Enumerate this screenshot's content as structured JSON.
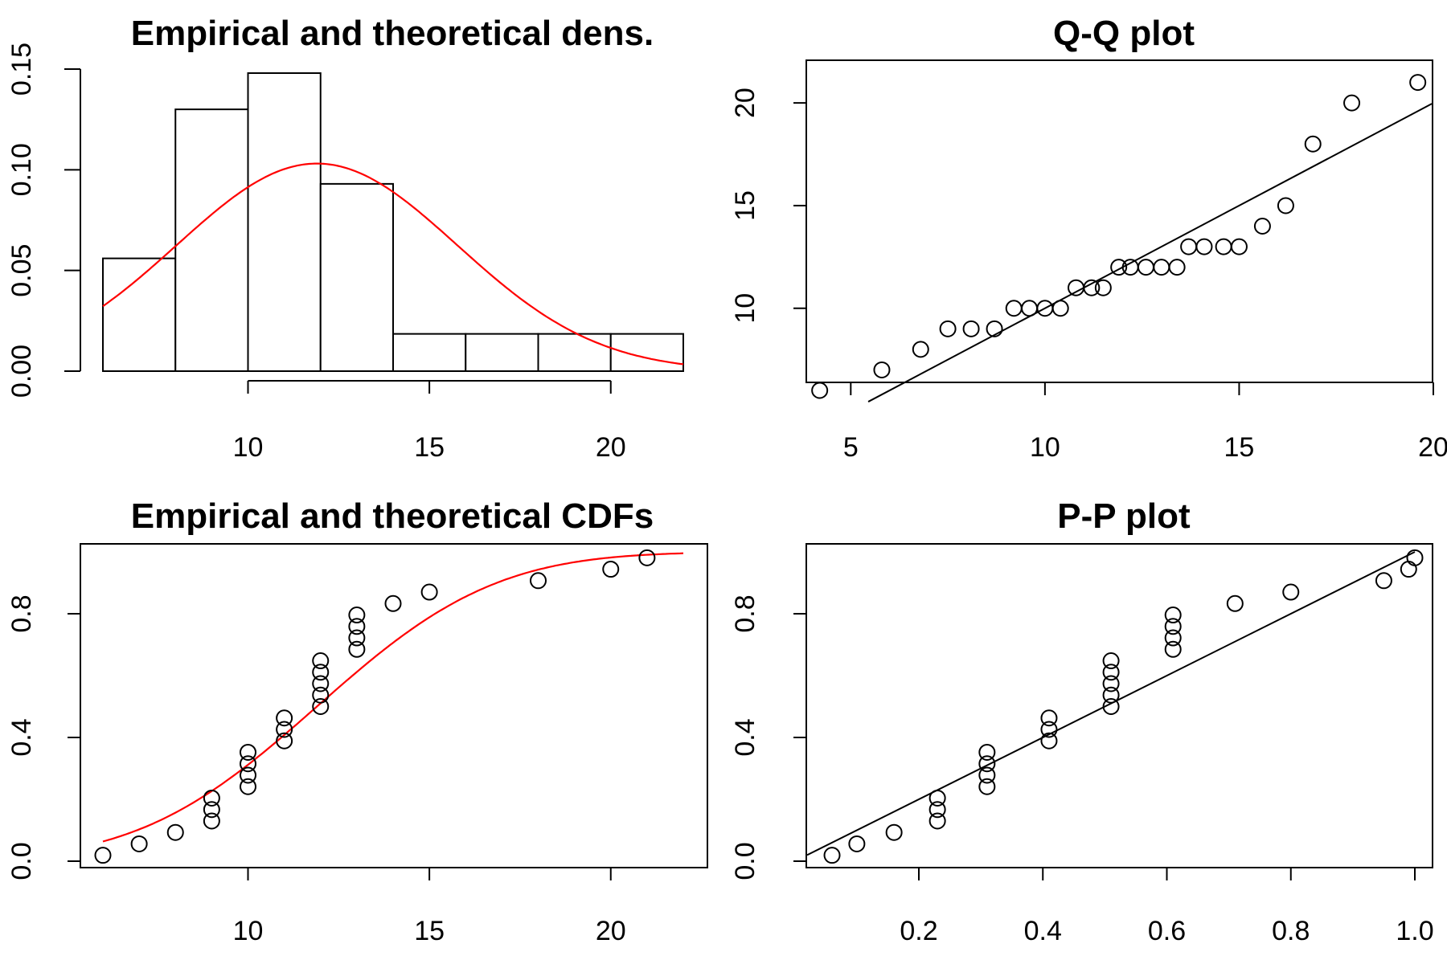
{
  "chart_data": [
    {
      "type": "histogram",
      "title": "Empirical and theoretical dens.",
      "xlabel": "",
      "ylabel": "",
      "xlim": [
        6,
        22
      ],
      "ylim": [
        0,
        0.15
      ],
      "x_ticks": [
        "10",
        "15",
        "20"
      ],
      "y_ticks": [
        "0.00",
        "0.05",
        "0.10",
        "0.15"
      ],
      "bins": [
        {
          "from": 6,
          "to": 8,
          "density": 0.056
        },
        {
          "from": 8,
          "to": 10,
          "density": 0.13
        },
        {
          "from": 10,
          "to": 12,
          "density": 0.148
        },
        {
          "from": 12,
          "to": 14,
          "density": 0.093
        },
        {
          "from": 14,
          "to": 16,
          "density": 0.0185
        },
        {
          "from": 16,
          "to": 18,
          "density": 0.0185
        },
        {
          "from": 18,
          "to": 20,
          "density": 0.0185
        },
        {
          "from": 20,
          "to": 22,
          "density": 0.0185
        }
      ],
      "theoretical_curve": {
        "distribution": "normal",
        "mean": 11.9,
        "sd": 3.87,
        "color": "#ff0000"
      }
    },
    {
      "type": "scatter",
      "title": "Q-Q plot",
      "xlabel": "",
      "ylabel": "",
      "xlim": [
        4,
        20
      ],
      "ylim": [
        6,
        22
      ],
      "x_ticks": [
        "5",
        "10",
        "15",
        "20"
      ],
      "y_ticks": [
        "10",
        "15",
        "20"
      ],
      "points": {
        "x": [
          4.2,
          5.8,
          6.8,
          7.5,
          8.1,
          8.7,
          9.2,
          9.6,
          10.0,
          10.4,
          10.8,
          11.2,
          11.5,
          11.9,
          12.2,
          12.6,
          13.0,
          13.4,
          13.7,
          14.1,
          14.6,
          15.0,
          15.6,
          16.2,
          16.9,
          17.9,
          19.6
        ],
        "y": [
          6,
          7,
          8,
          9,
          9,
          9,
          10,
          10,
          10,
          10,
          11,
          11,
          11,
          12,
          12,
          12,
          12,
          12,
          13,
          13,
          13,
          13,
          14,
          15,
          18,
          20,
          21
        ]
      },
      "reference_line": {
        "x": [
          4,
          20
        ],
        "y": [
          4.0,
          20.0
        ]
      }
    },
    {
      "type": "scatter",
      "title": "Empirical and theoretical CDFs",
      "xlabel": "",
      "ylabel": "",
      "xlim": [
        6,
        22
      ],
      "ylim": [
        0,
        1
      ],
      "x_ticks": [
        "10",
        "15",
        "20"
      ],
      "y_ticks": [
        "0.0",
        "0.4",
        "0.8"
      ],
      "points": {
        "x": [
          6,
          7,
          8,
          9,
          9,
          9,
          10,
          10,
          10,
          10,
          11,
          11,
          11,
          12,
          12,
          12,
          12,
          12,
          13,
          13,
          13,
          13,
          14,
          15,
          18,
          20,
          21
        ],
        "y": [
          0.019,
          0.056,
          0.093,
          0.13,
          0.167,
          0.204,
          0.241,
          0.278,
          0.315,
          0.352,
          0.389,
          0.426,
          0.463,
          0.5,
          0.537,
          0.574,
          0.611,
          0.648,
          0.685,
          0.722,
          0.759,
          0.796,
          0.833,
          0.87,
          0.907,
          0.944,
          0.981
        ]
      },
      "theoretical_curve": {
        "distribution": "normal",
        "mean": 11.9,
        "sd": 3.87,
        "color": "#ff0000"
      }
    },
    {
      "type": "scatter",
      "title": "P-P plot",
      "xlabel": "",
      "ylabel": "",
      "xlim": [
        0.03,
        1.0
      ],
      "ylim": [
        0,
        1
      ],
      "x_ticks": [
        "0.2",
        "0.4",
        "0.6",
        "0.8",
        "1.0"
      ],
      "y_ticks": [
        "0.0",
        "0.4",
        "0.8"
      ],
      "points": {
        "x": [
          0.06,
          0.1,
          0.16,
          0.23,
          0.23,
          0.23,
          0.31,
          0.31,
          0.31,
          0.31,
          0.41,
          0.41,
          0.41,
          0.51,
          0.51,
          0.51,
          0.51,
          0.51,
          0.61,
          0.61,
          0.61,
          0.61,
          0.71,
          0.8,
          0.95,
          0.99,
          1.0
        ],
        "y": [
          0.019,
          0.056,
          0.093,
          0.13,
          0.167,
          0.204,
          0.241,
          0.278,
          0.315,
          0.352,
          0.389,
          0.426,
          0.463,
          0.5,
          0.537,
          0.574,
          0.611,
          0.648,
          0.685,
          0.722,
          0.759,
          0.796,
          0.833,
          0.87,
          0.907,
          0.944,
          0.981
        ]
      },
      "reference_line": {
        "x": [
          0,
          1
        ],
        "y": [
          0,
          1
        ]
      }
    }
  ]
}
